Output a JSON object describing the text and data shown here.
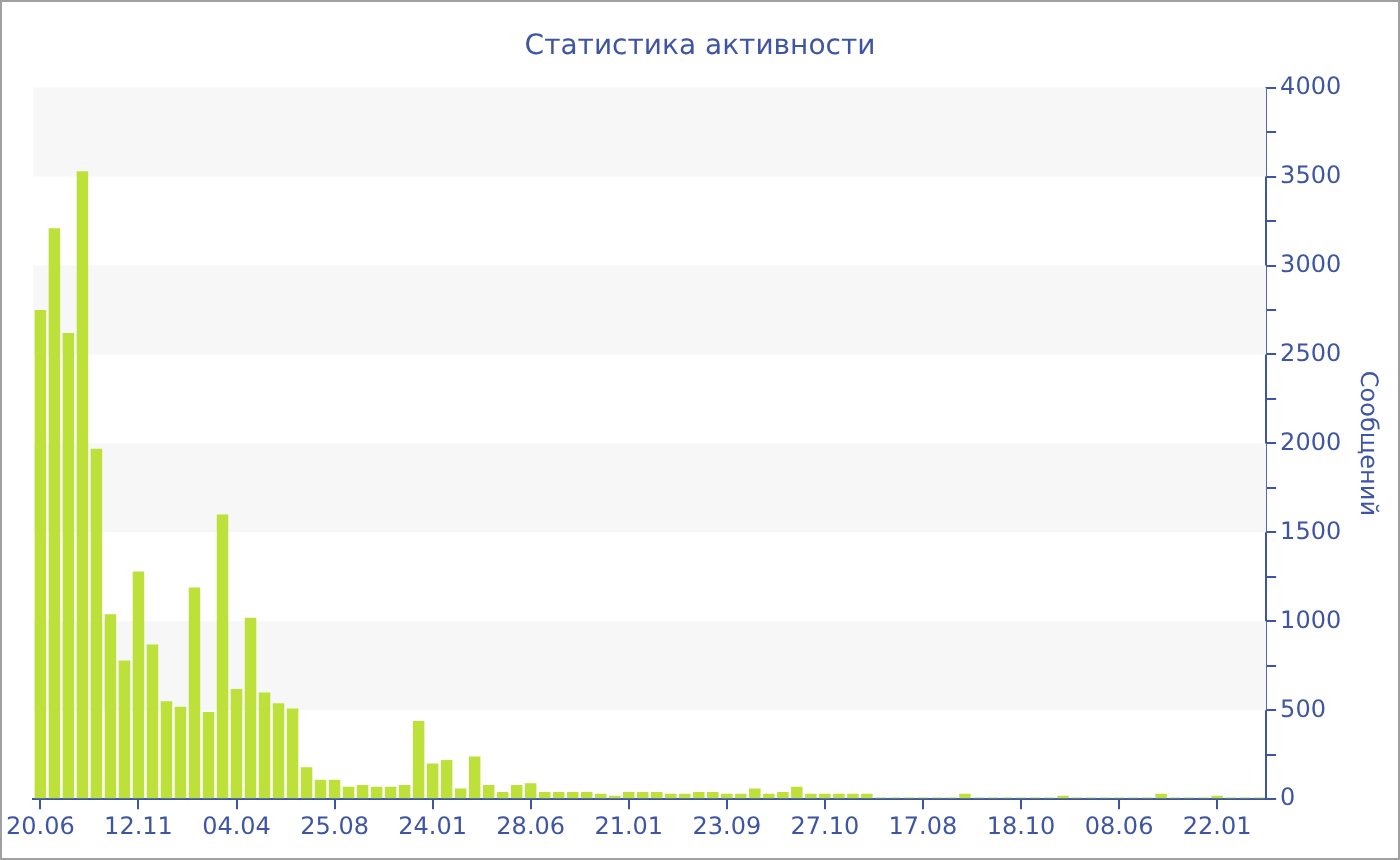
{
  "chart_data": {
    "type": "bar",
    "title": "Статистика активности",
    "ylabel": "Сообщений",
    "categories": [
      "20.06",
      null,
      null,
      null,
      null,
      null,
      null,
      "12.11",
      null,
      null,
      null,
      null,
      null,
      null,
      "04.04",
      null,
      null,
      null,
      null,
      null,
      null,
      "25.08",
      null,
      null,
      null,
      null,
      null,
      null,
      "24.01",
      null,
      null,
      null,
      null,
      null,
      null,
      "28.06",
      null,
      null,
      null,
      null,
      null,
      null,
      "21.01",
      null,
      null,
      null,
      null,
      null,
      null,
      "23.09",
      null,
      null,
      null,
      null,
      null,
      null,
      "27.10",
      null,
      null,
      null,
      null,
      null,
      null,
      "17.08",
      null,
      null,
      null,
      null,
      null,
      null,
      "18.10",
      null,
      null,
      null,
      null,
      null,
      null,
      "08.06",
      null,
      null,
      null,
      null,
      null,
      null,
      "22.01",
      null,
      null,
      null
    ],
    "values": [
      2750,
      3210,
      2620,
      3530,
      1970,
      1040,
      780,
      1280,
      870,
      550,
      520,
      1190,
      490,
      1600,
      620,
      1020,
      600,
      540,
      510,
      180,
      110,
      110,
      70,
      80,
      70,
      70,
      80,
      440,
      200,
      220,
      60,
      240,
      80,
      40,
      80,
      90,
      40,
      40,
      40,
      40,
      30,
      20,
      40,
      40,
      40,
      30,
      30,
      40,
      40,
      30,
      30,
      60,
      30,
      40,
      70,
      30,
      30,
      30,
      30,
      30,
      10,
      10,
      10,
      10,
      10,
      10,
      30,
      10,
      10,
      10,
      10,
      10,
      10,
      20,
      10,
      10,
      10,
      10,
      10,
      10,
      30,
      10,
      10,
      10,
      20,
      10,
      10,
      10
    ],
    "color": "#bde03a",
    "ylim": [
      0,
      4000
    ],
    "yticks": [
      0,
      {
        "value": 250,
        "label": null
      },
      500,
      {
        "value": 750,
        "label": null
      },
      1000,
      {
        "value": 1250,
        "label": null
      },
      1500,
      {
        "value": 1750,
        "label": null
      },
      2000,
      {
        "value": 2250,
        "label": null
      },
      2500,
      {
        "value": 2750,
        "label": null
      },
      3000,
      {
        "value": 3250,
        "label": null
      },
      3500,
      {
        "value": 3750,
        "label": null
      },
      4000
    ],
    "bands": [
      {
        "axis": "y",
        "from": 500,
        "to": 1000,
        "color": "#f7f7f7"
      },
      {
        "axis": "y",
        "from": 1500,
        "to": 2000,
        "color": "#f7f7f7"
      },
      {
        "axis": "y",
        "from": 2500,
        "to": 3000,
        "color": "#f7f7f7"
      },
      {
        "axis": "y",
        "from": 3500,
        "to": 4000,
        "color": "#f7f7f7"
      }
    ],
    "legend": false
  }
}
